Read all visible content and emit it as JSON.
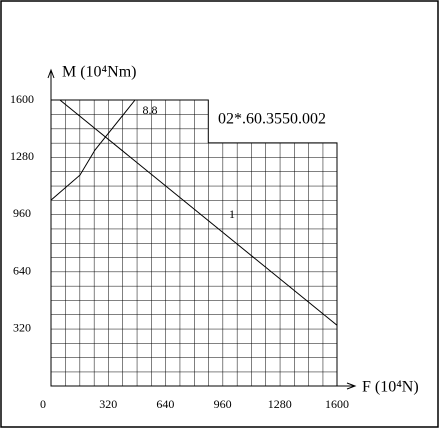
{
  "chart_data": {
    "type": "line",
    "x_label": "F (10⁴N)",
    "y_label": "M (10⁴Nm)",
    "annotation": "02*.60.3550.002",
    "xlim": [
      0,
      1600
    ],
    "ylim": [
      0,
      1600
    ],
    "xticks": [
      0,
      320,
      640,
      960,
      1280,
      1600
    ],
    "yticks": [
      320,
      640,
      960,
      1280,
      1600
    ],
    "grid_region": [
      [
        0,
        0
      ],
      [
        0,
        1600
      ],
      [
        880,
        1600
      ],
      [
        880,
        1360
      ],
      [
        1600,
        1360
      ],
      [
        1600,
        0
      ]
    ],
    "color": "#000000",
    "series": [
      {
        "name": "1",
        "x": [
          50,
          1600
        ],
        "values": [
          1600,
          340
        ]
      },
      {
        "name": "8.8",
        "x": [
          0,
          162,
          246,
          470
        ],
        "values": [
          1040,
          1180,
          1320,
          1600
        ]
      }
    ]
  }
}
